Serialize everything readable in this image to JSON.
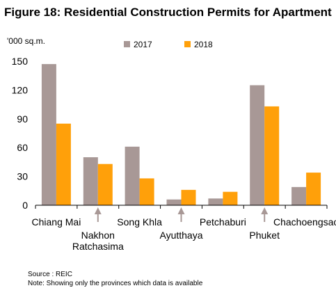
{
  "title": "Figure 18: Residential Construction Permits for Apartment",
  "source": "Source : REIC",
  "note": "Note: Showing only the provinces which data is available",
  "colors": {
    "2017": "#a89896",
    "2018": "#ffa00a",
    "arrow": "#a89896",
    "axis": "#000000"
  },
  "chart_data": {
    "type": "bar",
    "title": "Figure 18: Residential Construction Permits for Apartment",
    "ylabel": "'000 sq.m.",
    "xlabel": "",
    "ylim": [
      0,
      150
    ],
    "yticks": [
      0,
      30,
      60,
      90,
      120,
      150
    ],
    "grid": false,
    "legend_position": "top",
    "categories": [
      {
        "label": [
          "Chiang Mai"
        ],
        "row": "upper",
        "arrow": false
      },
      {
        "label": [
          "Nakhon",
          "Ratchasima"
        ],
        "row": "lower",
        "arrow": true
      },
      {
        "label": [
          "Song Khla"
        ],
        "row": "upper",
        "arrow": false
      },
      {
        "label": [
          "Ayutthaya"
        ],
        "row": "lower",
        "arrow": true
      },
      {
        "label": [
          "Petchaburi"
        ],
        "row": "upper",
        "arrow": false
      },
      {
        "label": [
          "Phuket"
        ],
        "row": "lower",
        "arrow": true
      },
      {
        "label": [
          "Chachoengsao"
        ],
        "row": "upper",
        "arrow": false
      }
    ],
    "series": [
      {
        "name": "2017",
        "values": [
          147,
          50,
          61,
          6,
          7,
          125,
          19
        ]
      },
      {
        "name": "2018",
        "values": [
          85,
          43,
          28,
          16,
          14,
          103,
          34
        ]
      }
    ]
  }
}
